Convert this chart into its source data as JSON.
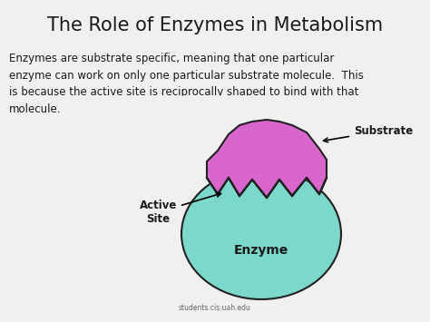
{
  "title": "The Role of Enzymes in Metabolism",
  "body_text": "Enzymes are substrate specific, meaning that one particular\nenzyme can work on only one particular substrate molecule.  This\nis because the active site is reciprocally shaped to bind with that\nmolecule.",
  "label_substrate": "Substrate",
  "label_active_site": "Active\nSite",
  "label_enzyme": "Enzyme",
  "label_source": "students.cis.uah.edu",
  "bg_color": "#f0f0f0",
  "title_color": "#1a1a1a",
  "body_color": "#1a1a1a",
  "enzyme_color": "#7dd8cc",
  "substrate_color": "#d966cc",
  "outline_color": "#222222",
  "title_fontsize": 15,
  "body_fontsize": 8.5,
  "label_fontsize": 8.5,
  "source_fontsize": 5.5,
  "enzyme_label_fontsize": 10
}
